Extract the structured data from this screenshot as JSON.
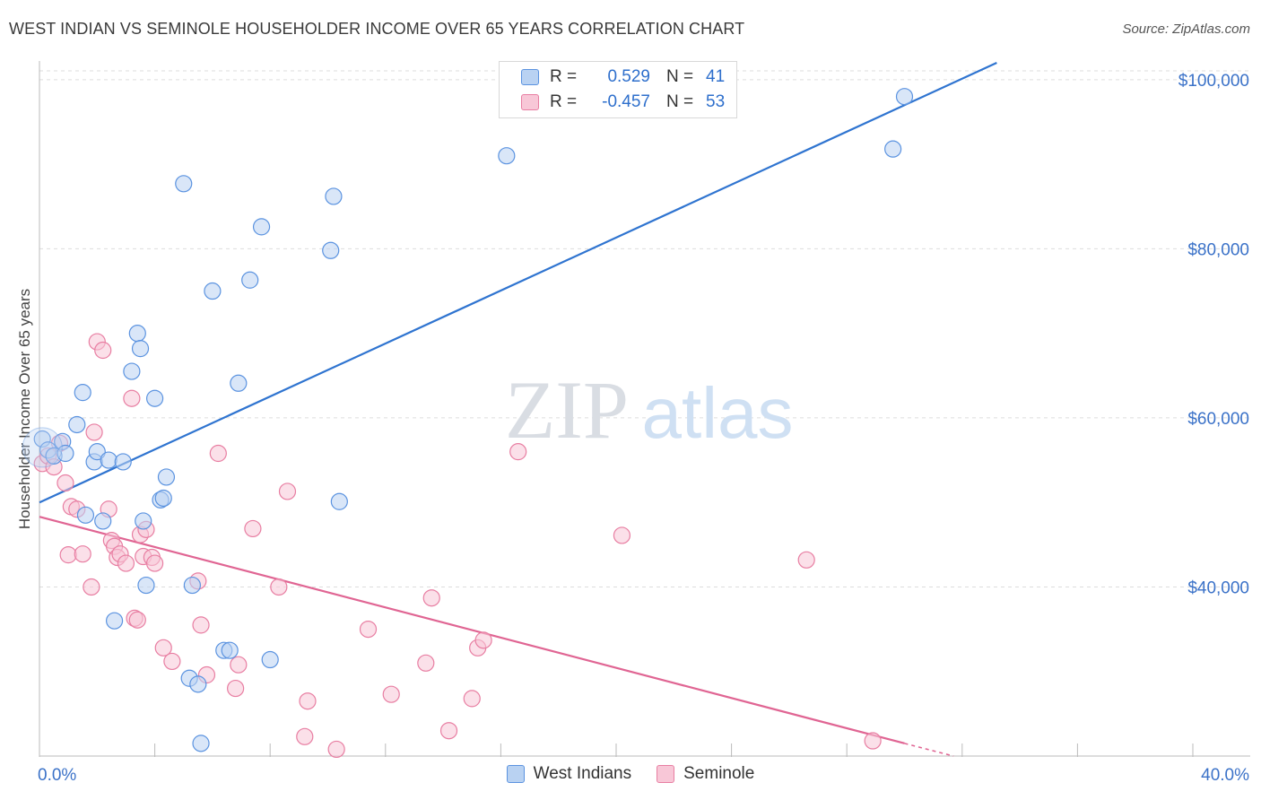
{
  "title": "WEST INDIAN VS SEMINOLE HOUSEHOLDER INCOME OVER 65 YEARS CORRELATION CHART",
  "source": "Source: ZipAtlas.com",
  "watermark": {
    "zip": "ZIP",
    "atlas": "atlas"
  },
  "colors": {
    "blue": "#5b93e0",
    "blue_fill": "#b9d2f2",
    "blue_line": "#2f74d0",
    "pink": "#e87ea2",
    "pink_fill": "#f8c7d7",
    "pink_line": "#e06593",
    "axis_text": "#3b72c8",
    "grid": "#dddddd"
  },
  "legend": {
    "rows": [
      {
        "r_label": "R =",
        "r_value": "0.529",
        "n_label": "N =",
        "n_value": "41"
      },
      {
        "r_label": "R =",
        "r_value": "-0.457",
        "n_label": "N =",
        "n_value": "53"
      }
    ]
  },
  "chart_data": {
    "type": "scatter",
    "title": "WEST INDIAN VS SEMINOLE HOUSEHOLDER INCOME OVER 65 YEARS CORRELATION CHART",
    "xlabel": "",
    "ylabel": "Householder Income Over 65 years",
    "x_unit": "%",
    "xlim": [
      0,
      40
    ],
    "ylim": [
      20000,
      102000
    ],
    "x_tick_labels": [
      "0.0%",
      "40.0%"
    ],
    "y_ticks": [
      40000,
      60000,
      80000,
      100000
    ],
    "y_tick_labels": [
      "$40,000",
      "$60,000",
      "$80,000",
      "$100,000"
    ],
    "grid": true,
    "legend_position": "bottom",
    "series": [
      {
        "name": "West Indians",
        "color": "#5b93e0",
        "points": [
          [
            0.1,
            57.5
          ],
          [
            0.3,
            56.2
          ],
          [
            0.5,
            55.5
          ],
          [
            0.8,
            57.2
          ],
          [
            0.9,
            55.8
          ],
          [
            1.3,
            59.2
          ],
          [
            1.5,
            63.0
          ],
          [
            1.6,
            48.5
          ],
          [
            1.9,
            54.8
          ],
          [
            2.0,
            56.0
          ],
          [
            2.2,
            47.8
          ],
          [
            2.4,
            55.0
          ],
          [
            2.6,
            36.0
          ],
          [
            2.9,
            54.8
          ],
          [
            3.2,
            65.5
          ],
          [
            3.4,
            70.0
          ],
          [
            3.5,
            68.2
          ],
          [
            3.6,
            47.8
          ],
          [
            3.7,
            40.2
          ],
          [
            4.0,
            62.3
          ],
          [
            4.2,
            50.3
          ],
          [
            4.3,
            50.5
          ],
          [
            4.4,
            53.0
          ],
          [
            5.0,
            87.7
          ],
          [
            5.2,
            29.2
          ],
          [
            5.3,
            40.2
          ],
          [
            5.5,
            28.5
          ],
          [
            5.6,
            21.5
          ],
          [
            6.0,
            75.0
          ],
          [
            6.4,
            32.5
          ],
          [
            6.6,
            32.5
          ],
          [
            6.9,
            64.1
          ],
          [
            7.3,
            76.3
          ],
          [
            7.7,
            82.6
          ],
          [
            8.0,
            31.4
          ],
          [
            10.1,
            79.8
          ],
          [
            10.2,
            86.2
          ],
          [
            10.4,
            50.1
          ],
          [
            16.2,
            91.0
          ],
          [
            29.6,
            91.8
          ],
          [
            30.0,
            98.0
          ]
        ],
        "trend": {
          "x": [
            0,
            33.2
          ],
          "y": [
            50.0,
            102.0
          ]
        }
      },
      {
        "name": "Seminole",
        "color": "#e87ea2",
        "points": [
          [
            0.1,
            54.6
          ],
          [
            0.3,
            55.5
          ],
          [
            0.5,
            54.2
          ],
          [
            0.7,
            57.0
          ],
          [
            0.9,
            52.3
          ],
          [
            1.0,
            43.8
          ],
          [
            1.1,
            49.5
          ],
          [
            1.3,
            49.2
          ],
          [
            1.5,
            43.9
          ],
          [
            1.8,
            40.0
          ],
          [
            1.9,
            58.3
          ],
          [
            2.0,
            69.0
          ],
          [
            2.2,
            68.0
          ],
          [
            2.4,
            49.2
          ],
          [
            2.5,
            45.5
          ],
          [
            2.6,
            44.8
          ],
          [
            2.7,
            43.5
          ],
          [
            2.8,
            43.9
          ],
          [
            3.0,
            42.8
          ],
          [
            3.2,
            62.3
          ],
          [
            3.3,
            36.3
          ],
          [
            3.4,
            36.1
          ],
          [
            3.5,
            46.2
          ],
          [
            3.6,
            43.6
          ],
          [
            3.7,
            46.8
          ],
          [
            3.9,
            43.5
          ],
          [
            4.0,
            42.8
          ],
          [
            4.3,
            32.8
          ],
          [
            4.6,
            31.2
          ],
          [
            5.5,
            40.7
          ],
          [
            5.6,
            35.5
          ],
          [
            5.8,
            29.6
          ],
          [
            6.2,
            55.8
          ],
          [
            6.8,
            28.0
          ],
          [
            6.9,
            30.8
          ],
          [
            7.4,
            46.9
          ],
          [
            8.3,
            40.0
          ],
          [
            8.6,
            51.3
          ],
          [
            9.2,
            22.3
          ],
          [
            9.3,
            26.5
          ],
          [
            10.3,
            20.8
          ],
          [
            11.4,
            35.0
          ],
          [
            12.2,
            27.3
          ],
          [
            13.4,
            31.0
          ],
          [
            13.6,
            38.7
          ],
          [
            14.2,
            23.0
          ],
          [
            15.0,
            26.8
          ],
          [
            15.2,
            32.8
          ],
          [
            15.4,
            33.7
          ],
          [
            16.6,
            56.0
          ],
          [
            20.2,
            46.1
          ],
          [
            26.6,
            43.2
          ],
          [
            28.9,
            21.8
          ]
        ],
        "trend": {
          "x": [
            0,
            30.0
          ],
          "y": [
            48.3,
            21.5
          ]
        },
        "trend_dashed_to": {
          "x": 31.7,
          "y": 20.0
        }
      }
    ],
    "y_values_in_thousands": true
  },
  "bottom_legend": [
    {
      "label": "West Indians"
    },
    {
      "label": "Seminole"
    }
  ]
}
